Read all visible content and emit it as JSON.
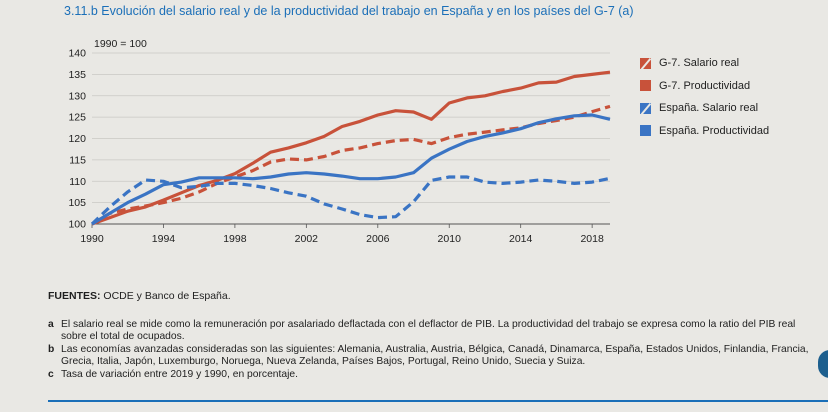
{
  "title": "3.11.b  Evolución del salario real y de la productividad del trabajo en España y en los países del G-7 (a)",
  "chart_data": {
    "type": "line",
    "ylabel": "1990 = 100",
    "ylim": [
      100,
      140
    ],
    "yticks": [
      100,
      105,
      110,
      115,
      120,
      125,
      130,
      135,
      140
    ],
    "xlim": [
      1990,
      2019
    ],
    "xticks": [
      1990,
      1994,
      1998,
      2002,
      2006,
      2010,
      2014,
      2018
    ],
    "x": [
      1990,
      1991,
      1992,
      1993,
      1994,
      1995,
      1996,
      1997,
      1998,
      1999,
      2000,
      2001,
      2002,
      2003,
      2004,
      2005,
      2006,
      2007,
      2008,
      2009,
      2010,
      2011,
      2012,
      2013,
      2014,
      2015,
      2016,
      2017,
      2018,
      2019
    ],
    "legend_position": "right",
    "series": [
      {
        "name": "G-7. Salario real",
        "color": "#c8523a",
        "dashed": true,
        "values": [
          100,
          102.5,
          103.5,
          104.2,
          105,
          106,
          107.5,
          109.5,
          111,
          112.5,
          114.5,
          115.2,
          115,
          115.8,
          117.2,
          117.8,
          118.8,
          119.5,
          119.8,
          118.8,
          120.2,
          121,
          121.5,
          122,
          122.5,
          123.5,
          124.2,
          125,
          126.3,
          127.5
        ]
      },
      {
        "name": "G-7. Productividad",
        "color": "#c8523a",
        "dashed": false,
        "values": [
          100,
          101.5,
          103,
          104,
          105.6,
          107.3,
          109,
          110.2,
          111.8,
          114.2,
          116.8,
          117.8,
          119,
          120.5,
          122.8,
          124,
          125.5,
          126.5,
          126.2,
          124.5,
          128.3,
          129.5,
          130,
          131,
          131.8,
          133,
          133.2,
          134.5,
          135,
          135.5
        ]
      },
      {
        "name": "España. Salario real",
        "color": "#3a74c4",
        "dashed": true,
        "values": [
          100,
          104,
          107.5,
          110.3,
          110,
          108.5,
          108.8,
          109.5,
          109.5,
          109,
          108.3,
          107.3,
          106.5,
          104.7,
          103.5,
          102.2,
          101.5,
          101.7,
          105.2,
          110.2,
          111,
          111,
          109.8,
          109.5,
          109.8,
          110.3,
          110,
          109.5,
          109.8,
          110.7
        ]
      },
      {
        "name": "España. Productividad",
        "color": "#3a74c4",
        "dashed": false,
        "values": [
          100,
          102.5,
          105,
          107,
          109.2,
          109.8,
          110.8,
          110.8,
          110.8,
          110.6,
          111,
          111.7,
          112,
          111.7,
          111.2,
          110.6,
          110.6,
          111,
          112,
          115.4,
          117.5,
          119.3,
          120.5,
          121.3,
          122.3,
          123.7,
          124.6,
          125.3,
          125.5,
          124.5
        ]
      }
    ]
  },
  "notes": {
    "sources_label": "FUENTES:",
    "sources_text": "OCDE y Banco de España.",
    "items": [
      {
        "letter": "a",
        "text": "El salario real se mide como la remuneración por asalariado deflactada con el deflactor de PIB. La productividad del trabajo se expresa como la ratio del PIB real sobre el total de ocupados."
      },
      {
        "letter": "b",
        "text": "Las economías avanzadas consideradas son las siguientes: Alemania, Australia, Austria, Bélgica, Canadá, Dinamarca, España, Estados Unidos, Finlandia, Francia, Grecia, Italia, Japón, Luxemburgo, Noruega, Nueva Zelanda, Países Bajos, Portugal, Reino Unido, Suecia y Suiza."
      },
      {
        "letter": "c",
        "text": "Tasa de variación entre 2019 y 1990, en porcentaje."
      }
    ]
  }
}
